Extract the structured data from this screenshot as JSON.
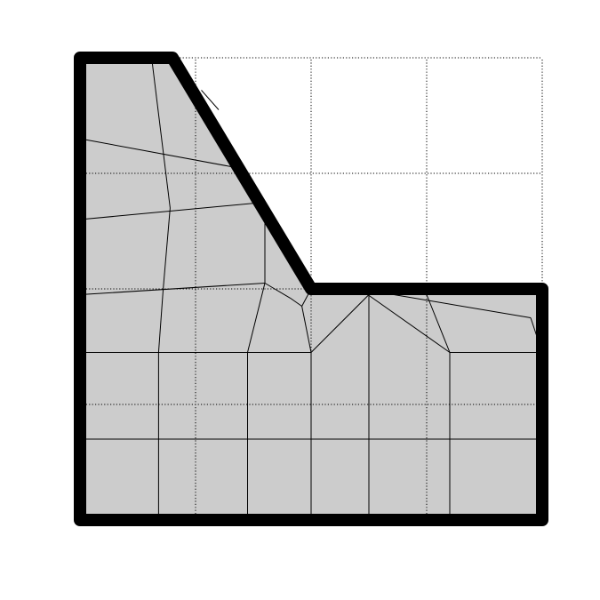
{
  "colors": {
    "background": "#ffffff",
    "domain_fill": "#cccccc",
    "boundary": "#000000",
    "mesh_edge": "#000000",
    "grid": "#000000"
  },
  "grid": {
    "style": "dotted",
    "x_lines": [
      0,
      1,
      2,
      3,
      4
    ],
    "y_lines": [
      0,
      1,
      2,
      3,
      4
    ]
  },
  "domain_outline": [
    [
      0,
      4
    ],
    [
      0.8,
      4
    ],
    [
      2,
      2
    ],
    [
      4,
      2
    ],
    [
      4,
      0
    ],
    [
      0,
      0
    ]
  ],
  "mesh": {
    "nodes": {
      "n01": [
        0,
        3.3
      ],
      "n02": [
        1.35,
        3.05
      ],
      "n03": [
        0,
        2.6
      ],
      "n04": [
        0.78,
        2.7
      ],
      "n05": [
        1.6,
        2.75
      ],
      "n06": [
        0,
        1.95
      ],
      "n07": [
        0.72,
        2.0
      ],
      "n08": [
        1.6,
        2.05
      ],
      "n09": [
        1.82,
        1.92
      ],
      "n10": [
        1.92,
        1.85
      ],
      "n11": [
        0,
        1.45
      ],
      "n12": [
        0.68,
        1.45
      ],
      "n13": [
        1.45,
        1.45
      ],
      "n14": [
        2.0,
        1.45
      ],
      "n15": [
        2.5,
        1.95
      ],
      "n16": [
        2.65,
        1.92
      ],
      "n17": [
        3.0,
        1.95
      ],
      "n18": [
        3.2,
        1.45
      ],
      "n19": [
        3.9,
        1.75
      ],
      "n20": [
        4.0,
        1.45
      ],
      "n21": [
        0,
        0.7
      ],
      "n22": [
        0.68,
        0.7
      ],
      "n23": [
        1.45,
        0.7
      ],
      "n24": [
        2.0,
        0.7
      ],
      "n25": [
        2.5,
        0.7
      ],
      "n26": [
        3.2,
        0.7
      ],
      "n27": [
        4.0,
        0.7
      ],
      "n28": [
        0.68,
        0
      ],
      "n29": [
        1.45,
        0
      ],
      "n30": [
        2.0,
        0
      ],
      "n31": [
        2.5,
        0
      ],
      "n32": [
        3.2,
        0
      ],
      "n33": [
        4.0,
        0
      ],
      "n34": [
        1.2,
        3.55
      ],
      "n35": [
        1.05,
        3.72
      ],
      "n36": [
        0.62,
        4.0
      ],
      "n37": [
        2.0,
        2.0
      ],
      "n38": [
        2.42,
        2.0
      ]
    },
    "edges": [
      [
        "n01",
        "n02"
      ],
      [
        "n03",
        "n05"
      ],
      [
        "n06",
        "n08"
      ],
      [
        "n08",
        "n09"
      ],
      [
        "n09",
        "n10"
      ],
      [
        "n11",
        "n12"
      ],
      [
        "n12",
        "n13"
      ],
      [
        "n13",
        "n14"
      ],
      [
        "n18",
        "n20"
      ],
      [
        "n21",
        "n27"
      ],
      [
        "n36",
        "n04"
      ],
      [
        "n04",
        "n07"
      ],
      [
        "n07",
        "n12"
      ],
      [
        "n12",
        "n22"
      ],
      [
        "n22",
        "n28"
      ],
      [
        "n05",
        "n08"
      ],
      [
        "n08",
        "n13"
      ],
      [
        "n13",
        "n23"
      ],
      [
        "n23",
        "n29"
      ],
      [
        "n14",
        "n24"
      ],
      [
        "n24",
        "n30"
      ],
      [
        "n14",
        "n15"
      ],
      [
        "n15",
        "n25"
      ],
      [
        "n25",
        "n31"
      ],
      [
        "n18",
        "n26"
      ],
      [
        "n26",
        "n32"
      ],
      [
        "n10",
        "n14"
      ],
      [
        "n10",
        "n37"
      ],
      [
        "n38",
        "n18"
      ],
      [
        "n38",
        "n19"
      ],
      [
        "n19",
        "n20"
      ],
      [
        "n17",
        "n18"
      ],
      [
        "n35",
        "n34"
      ]
    ]
  }
}
